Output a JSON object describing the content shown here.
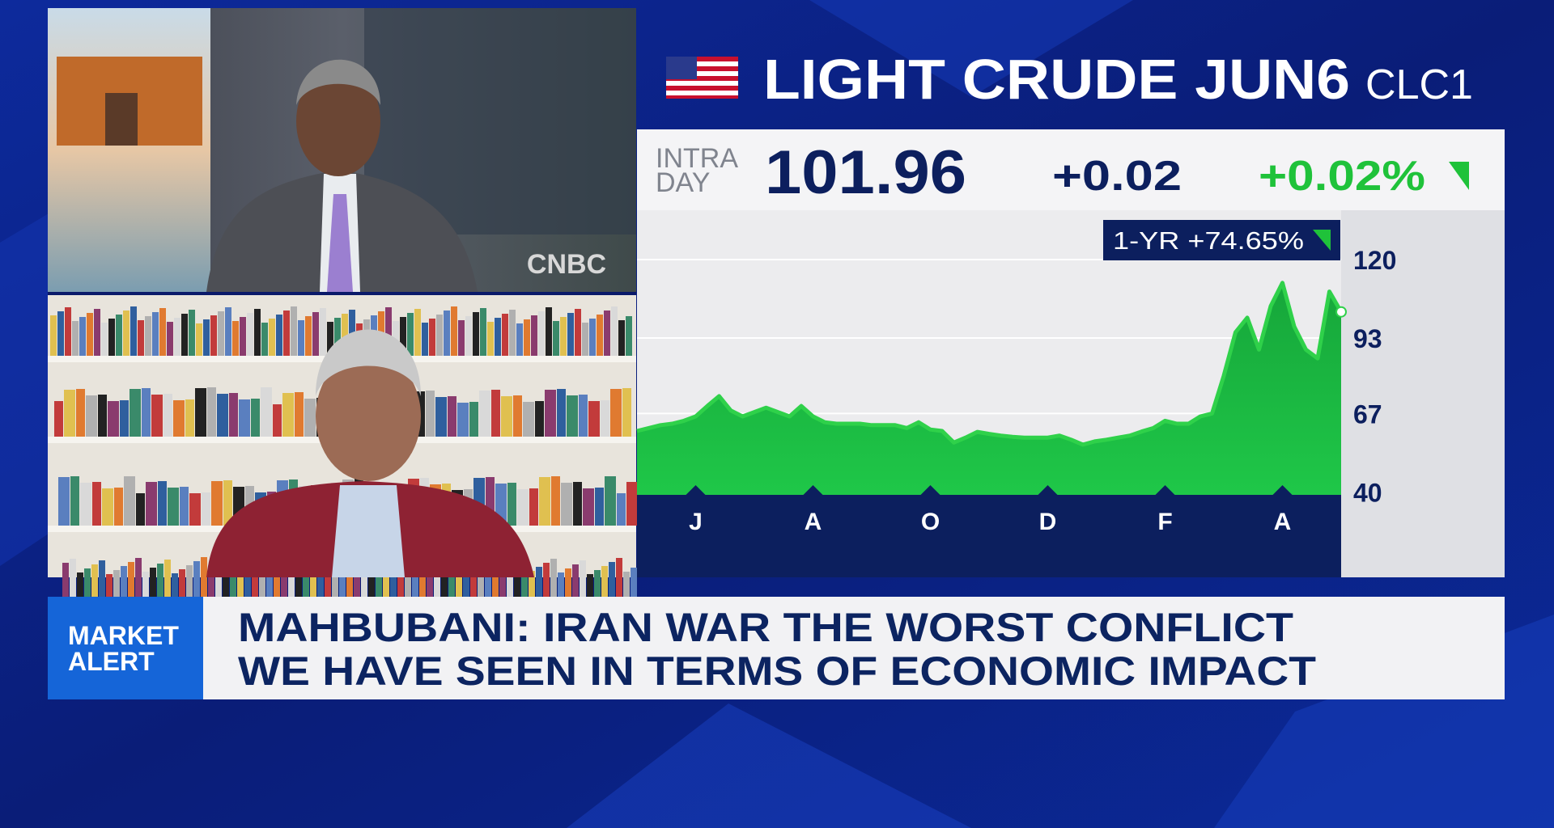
{
  "chart_data": {
    "type": "area",
    "title": "LIGHT CRUDE JUN6",
    "symbol": "CLC1",
    "quote_label_1": "INTRA",
    "quote_label_2": "DAY",
    "last_price": "101.96",
    "change": "+0.02",
    "change_percent": "+0.02%",
    "one_year_label": "1-YR +74.65%",
    "color": "#2fd14a",
    "categories": [
      null,
      null,
      null,
      null,
      null,
      "J",
      null,
      null,
      null,
      null,
      null,
      null,
      null,
      null,
      null,
      "A",
      null,
      null,
      null,
      null,
      null,
      null,
      null,
      null,
      null,
      "O",
      null,
      null,
      null,
      null,
      null,
      null,
      null,
      null,
      null,
      "D",
      null,
      null,
      null,
      null,
      null,
      null,
      null,
      null,
      null,
      "F",
      null,
      null,
      null,
      null,
      null,
      null,
      null,
      null,
      null,
      "A",
      null,
      null,
      null,
      null,
      null
    ],
    "values": [
      61,
      62,
      63,
      63.5,
      64.5,
      66,
      69.6,
      73,
      68,
      66,
      67.5,
      69,
      67.5,
      66,
      69.6,
      66,
      64,
      63.5,
      63.5,
      63.5,
      63,
      63,
      63,
      62,
      64,
      61.5,
      61,
      57,
      58.7,
      60.7,
      60,
      59.4,
      59,
      58.7,
      58.7,
      58.7,
      59.4,
      58,
      56.3,
      57.4,
      58,
      58.7,
      59.4,
      60.8,
      62,
      64.5,
      63.5,
      63.5,
      66,
      67,
      80,
      95,
      100,
      89,
      104,
      112,
      97,
      89,
      86,
      109,
      102
    ],
    "ylim": [
      39,
      137
    ],
    "yticks": [
      40,
      67,
      93,
      120
    ],
    "grid": true
  },
  "panels": {
    "studio_logo": "CNBC"
  },
  "lower_third": {
    "badge_line_1": "MARKET",
    "badge_line_2": "ALERT",
    "headline_line_1": "MAHBUBANI: IRAN WAR THE WORST CONFLICT",
    "headline_line_2": "WE HAVE SEEN IN TERMS OF ECONOMIC IMPACT"
  }
}
